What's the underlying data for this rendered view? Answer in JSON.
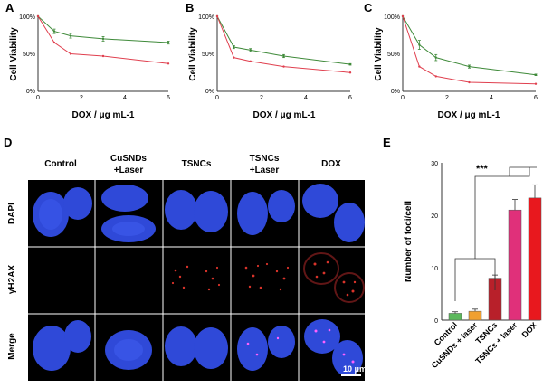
{
  "panels": {
    "A": {
      "letter": "A"
    },
    "B": {
      "letter": "B"
    },
    "C": {
      "letter": "C"
    },
    "D": {
      "letter": "D"
    },
    "E": {
      "letter": "E"
    }
  },
  "line_axes": {
    "ylabel": "Cell Viability",
    "xlabel": "DOX / μg mL-1",
    "yticks": [
      "0%",
      "50%",
      "100%"
    ],
    "xticks": [
      "0",
      "2",
      "4",
      "6"
    ]
  },
  "microscopy": {
    "columns": [
      "Control",
      "CuSNDs\n+Laser",
      "TSNCs",
      "TSNCs\n+Laser",
      "DOX"
    ],
    "rows": [
      "DAPI",
      "γH2AX",
      "Merge"
    ],
    "scale_bar": "10 μm"
  },
  "colors": {
    "green_series": "#3f8a3a",
    "red_series": "#e0404f",
    "dapi_blue": "#2f49d8",
    "foci_red": "#d8332a"
  },
  "chart_data": [
    {
      "type": "line",
      "panel": "A",
      "xlabel": "DOX / μg mL-1",
      "ylabel": "Cell Viability",
      "xlim": [
        0,
        6
      ],
      "ylim": [
        0,
        100
      ],
      "series": [
        {
          "color": "#3f8a3a",
          "x": [
            0,
            0.75,
            1.5,
            3,
            6
          ],
          "y": [
            100,
            80,
            74,
            70,
            65
          ],
          "err": [
            0,
            3,
            3,
            3,
            2
          ]
        },
        {
          "color": "#e0404f",
          "x": [
            0,
            0.75,
            1.5,
            3,
            6
          ],
          "y": [
            100,
            65,
            50,
            47,
            37
          ],
          "err": [
            0,
            0,
            0,
            0,
            0
          ]
        }
      ]
    },
    {
      "type": "line",
      "panel": "B",
      "xlabel": "DOX / μg mL-1",
      "ylabel": "Cell Viability",
      "xlim": [
        0,
        6
      ],
      "ylim": [
        0,
        100
      ],
      "series": [
        {
          "color": "#3f8a3a",
          "x": [
            0,
            0.75,
            1.5,
            3,
            6
          ],
          "y": [
            100,
            59,
            55,
            47,
            36
          ],
          "err": [
            0,
            2,
            2,
            2,
            1
          ]
        },
        {
          "color": "#e0404f",
          "x": [
            0,
            0.75,
            1.5,
            3,
            6
          ],
          "y": [
            100,
            45,
            40,
            33,
            25
          ],
          "err": [
            0,
            0,
            0,
            0,
            0
          ]
        }
      ]
    },
    {
      "type": "line",
      "panel": "C",
      "xlabel": "DOX / μg mL-1",
      "ylabel": "Cell Viability",
      "xlim": [
        0,
        6
      ],
      "ylim": [
        0,
        100
      ],
      "series": [
        {
          "color": "#3f8a3a",
          "x": [
            0,
            0.75,
            1.5,
            3,
            6
          ],
          "y": [
            100,
            62,
            45,
            33,
            22
          ],
          "err": [
            0,
            6,
            4,
            2,
            1
          ]
        },
        {
          "color": "#e0404f",
          "x": [
            0,
            0.75,
            1.5,
            3,
            6
          ],
          "y": [
            100,
            33,
            20,
            12,
            10
          ],
          "err": [
            0,
            0,
            0,
            0,
            0
          ]
        }
      ]
    },
    {
      "type": "bar",
      "panel": "E",
      "ylabel": "Number of foci/cell",
      "ylim": [
        0,
        30
      ],
      "yticks": [
        "0",
        "10",
        "20",
        "30"
      ],
      "categories": [
        "Control",
        "CuSNDs + laser",
        "TSNCs",
        "TSNCs + laser",
        "DOX"
      ],
      "values": [
        1.3,
        1.7,
        8.0,
        21.0,
        23.3
      ],
      "errors": [
        0.3,
        0.4,
        0.6,
        2.0,
        2.5
      ],
      "colors": [
        "#5cb85c",
        "#f0a030",
        "#b8202a",
        "#e0307a",
        "#e8181e"
      ],
      "annotation": "***"
    }
  ]
}
